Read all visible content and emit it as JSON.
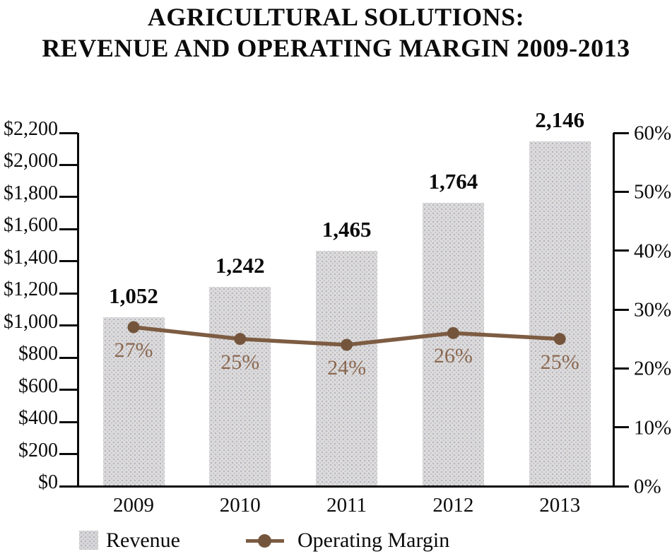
{
  "title": {
    "line1": "AGRICULTURAL SOLUTIONS:",
    "line2": "REVENUE AND OPERATING MARGIN 2009-2013"
  },
  "legend": {
    "revenue_label": "Revenue",
    "margin_label": "Operating Margin"
  },
  "colors": {
    "axis": "#0b0b0b",
    "bar_fill": "#dbdcde",
    "line": "#7d5c42",
    "marker": "#74553c",
    "pct_label": "#8a6850",
    "value_label": "#0b0b0b"
  },
  "chart_data": {
    "type": "bar",
    "subtype": "bar+line combo, dual axis",
    "title": "AGRICULTURAL SOLUTIONS: REVENUE AND OPERATING MARGIN 2009-2013",
    "categories": [
      "2009",
      "2010",
      "2011",
      "2012",
      "2013"
    ],
    "series": [
      {
        "name": "Revenue",
        "type": "bar",
        "axis": "left",
        "values": [
          1052,
          1242,
          1465,
          1764,
          2146
        ],
        "data_labels": [
          "1,052",
          "1,242",
          "1,465",
          "1,764",
          "2,146"
        ]
      },
      {
        "name": "Operating Margin",
        "type": "line",
        "axis": "right",
        "values": [
          27,
          25,
          24,
          26,
          25
        ],
        "data_labels": [
          "27%",
          "25%",
          "24%",
          "26%",
          "25%"
        ]
      }
    ],
    "left_axis": {
      "min": 0,
      "max": 2200,
      "step": 200,
      "tick_labels": [
        "$2,200",
        "$2,000",
        "$1,800",
        "$1,600",
        "$1,400",
        "$1,200",
        "$1,000",
        "$800",
        "$600",
        "$400",
        "$200",
        "$0"
      ]
    },
    "right_axis": {
      "min": 0,
      "max": 60,
      "step": 10,
      "tick_labels": [
        "60%",
        "50%",
        "40%",
        "30%",
        "20%",
        "10%",
        "0%"
      ]
    },
    "grid": false,
    "legend_position": "bottom"
  }
}
